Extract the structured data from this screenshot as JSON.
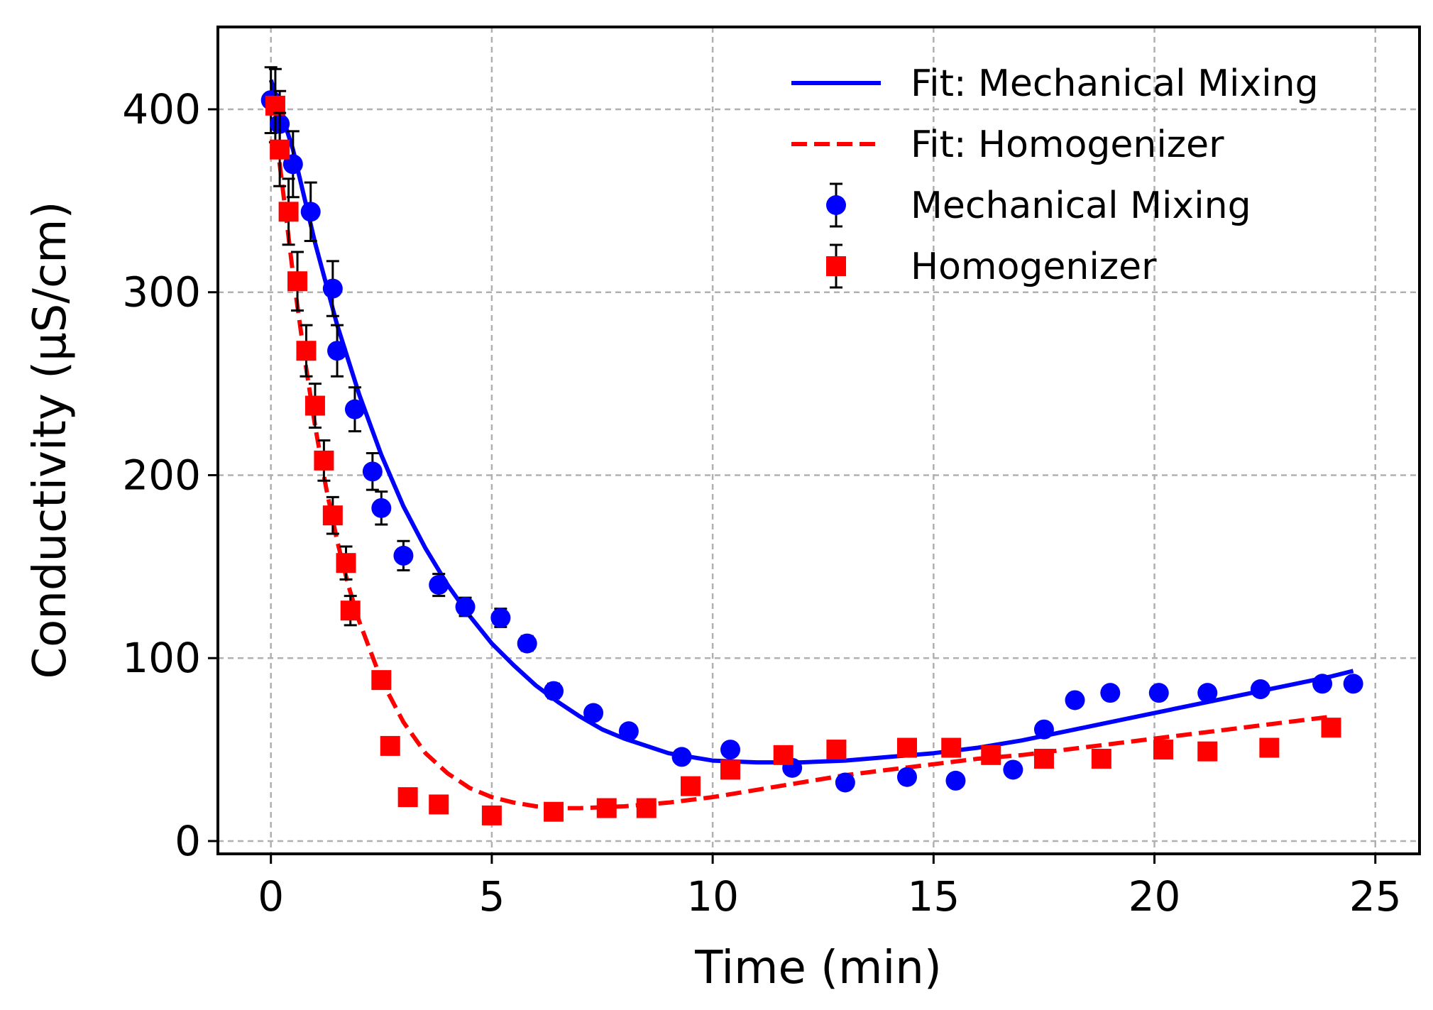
{
  "chart_data": {
    "type": "scatter",
    "title": "",
    "xlabel": "Time (min)",
    "ylabel": "Conductivity (μS/cm)",
    "xlim": [
      -1.2,
      26
    ],
    "ylim": [
      -7,
      445
    ],
    "xticks": [
      0,
      5,
      10,
      15,
      20,
      25
    ],
    "yticks": [
      0,
      100,
      200,
      300,
      400
    ],
    "grid": true,
    "legend_position": "top-right",
    "series": [
      {
        "name": "Mechanical Mixing",
        "kind": "points",
        "marker": "circle",
        "color": "#0000ff",
        "x": [
          0.0,
          0.2,
          0.5,
          0.9,
          1.4,
          1.5,
          1.9,
          2.3,
          2.5,
          3.0,
          3.8,
          4.4,
          5.2,
          5.8,
          6.4,
          7.3,
          8.1,
          9.3,
          10.4,
          11.8,
          13.0,
          14.4,
          15.5,
          16.8,
          17.5,
          18.2,
          19.0,
          20.1,
          21.2,
          22.4,
          23.8,
          24.5
        ],
        "y": [
          405,
          392,
          370,
          344,
          302,
          268,
          236,
          202,
          182,
          156,
          140,
          128,
          122,
          108,
          82,
          70,
          60,
          46,
          50,
          40,
          32,
          35,
          33,
          39,
          61,
          77,
          81,
          81,
          81,
          83,
          86,
          86
        ],
        "yerr": [
          18,
          18,
          18,
          16,
          15,
          14,
          12,
          10,
          9,
          8,
          6,
          5,
          5,
          4,
          4,
          3,
          3,
          3,
          3,
          3,
          3,
          3,
          3,
          3,
          3,
          3,
          3,
          3,
          3,
          3,
          3,
          3
        ]
      },
      {
        "name": "Homogenizer",
        "kind": "points",
        "marker": "square",
        "color": "#ff0000",
        "x": [
          0.1,
          0.2,
          0.4,
          0.6,
          0.8,
          1.0,
          1.2,
          1.4,
          1.7,
          1.8,
          2.5,
          2.7,
          3.1,
          3.8,
          5.0,
          6.4,
          7.6,
          8.5,
          9.5,
          10.4,
          11.6,
          12.8,
          14.4,
          15.4,
          16.3,
          17.5,
          18.8,
          20.2,
          21.2,
          22.6,
          24.0
        ],
        "y": [
          402,
          378,
          344,
          306,
          268,
          238,
          208,
          178,
          152,
          126,
          88,
          52,
          24,
          20,
          14,
          16,
          18,
          18,
          30,
          39,
          47,
          50,
          51,
          51,
          47,
          45,
          45,
          50,
          49,
          51,
          62
        ],
        "yerr": [
          20,
          20,
          18,
          16,
          14,
          12,
          11,
          10,
          9,
          8,
          0,
          0,
          0,
          0,
          0,
          0,
          0,
          0,
          0,
          0,
          0,
          0,
          0,
          0,
          0,
          0,
          0,
          0,
          0,
          0,
          0
        ]
      },
      {
        "name": "Fit: Mechanical Mixing",
        "kind": "line",
        "style": "solid",
        "color": "#0000ff",
        "x": [
          0,
          0.5,
          1,
          1.5,
          2,
          2.5,
          3,
          3.5,
          4,
          4.5,
          5,
          5.5,
          6,
          6.5,
          7,
          7.5,
          8,
          8.5,
          9,
          9.5,
          10,
          11,
          12,
          13,
          14,
          15,
          16,
          17,
          18,
          19,
          20,
          21,
          22,
          23,
          24,
          24.5
        ],
        "y": [
          416,
          378,
          327,
          282,
          244,
          211,
          183,
          160,
          140,
          123,
          108,
          96,
          85,
          76,
          68,
          61,
          56,
          52,
          48,
          46,
          44,
          43,
          43,
          44,
          46,
          48,
          51,
          55,
          60,
          65,
          70,
          75,
          80,
          85,
          90,
          93
        ]
      },
      {
        "name": "Fit: Homogenizer",
        "kind": "line",
        "style": "dashed",
        "color": "#ff0000",
        "x": [
          0,
          0.25,
          0.5,
          0.75,
          1,
          1.25,
          1.5,
          1.75,
          2,
          2.5,
          3,
          3.5,
          4,
          4.5,
          5,
          5.5,
          6,
          6.5,
          7,
          8,
          9,
          10,
          11,
          12,
          13,
          14,
          15,
          16,
          17,
          18,
          19,
          20,
          21,
          22,
          23,
          24
        ],
        "y": [
          408,
          360,
          310,
          266,
          227,
          193,
          164,
          140,
          120,
          88,
          65,
          48,
          37,
          29,
          24,
          21,
          19,
          18,
          18,
          19,
          21,
          24,
          28,
          32,
          36,
          39,
          42,
          45,
          47,
          50,
          53,
          56,
          59,
          62,
          65,
          68
        ]
      }
    ],
    "legend": [
      "Fit: Mechanical Mixing",
      "Fit: Homogenizer",
      "Mechanical Mixing",
      "Homogenizer"
    ]
  }
}
